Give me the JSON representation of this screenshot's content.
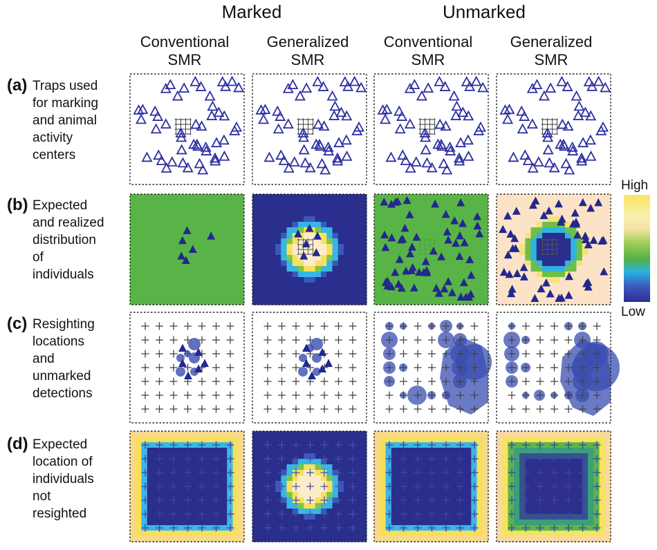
{
  "header": {
    "groups": [
      "Marked",
      "Unmarked"
    ],
    "columns": [
      [
        "Conventional",
        "SMR"
      ],
      [
        "Generalized",
        "SMR"
      ],
      [
        "Conventional",
        "SMR"
      ],
      [
        "Generalized",
        "SMR"
      ]
    ]
  },
  "rows": [
    {
      "letter": "(a)",
      "lines": [
        "Traps used",
        "for marking",
        "and animal",
        "activity",
        "centers"
      ]
    },
    {
      "letter": "(b)",
      "lines": [
        "Expected",
        "and realized",
        "distribution",
        "of",
        "individuals"
      ]
    },
    {
      "letter": "(c)",
      "lines": [
        "Resighting",
        "locations",
        "and",
        "unmarked",
        "detections"
      ]
    },
    {
      "letter": "(d)",
      "lines": [
        "Expected",
        "location of",
        "individuals",
        "not",
        "resighted"
      ]
    }
  ],
  "legend": {
    "high": "High",
    "low": "Low",
    "colors": [
      "#fbe463",
      "#f8efb0",
      "#52b043",
      "#2ab3e0",
      "#2c2d97"
    ]
  },
  "colors": {
    "dark_blue": "#2a2e8c",
    "green": "#59b447",
    "peach": "#fce3c7",
    "yellow": "#f7e04a",
    "cyan": "#33b9e6",
    "trap_symbol": "#2b2fa0",
    "circle_fill": "#3a4db0"
  }
}
